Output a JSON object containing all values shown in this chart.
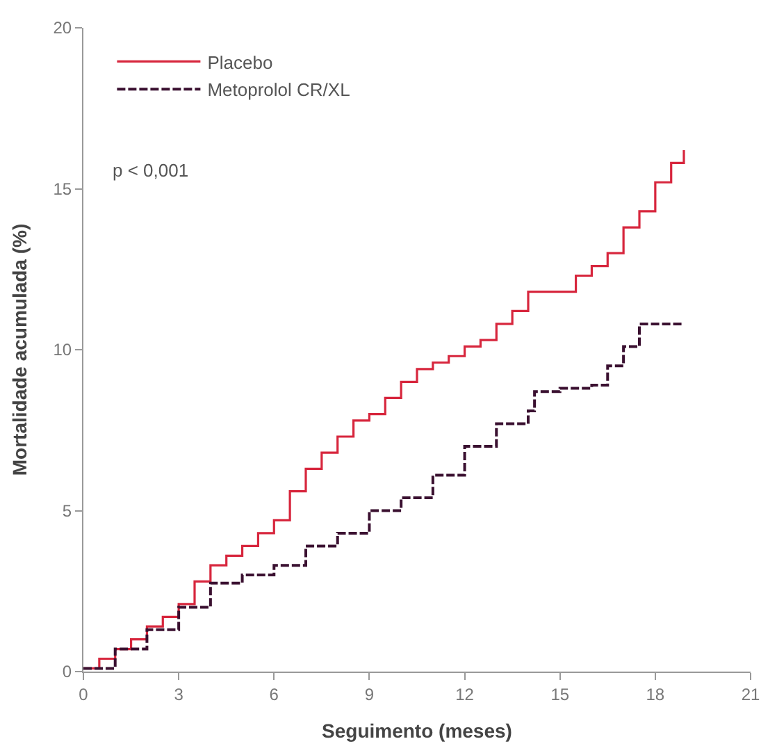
{
  "chart_data": {
    "type": "step",
    "xlabel": "Seguimento (meses)",
    "ylabel": "Mortalidade acumulada (%)",
    "xlim": [
      0,
      21
    ],
    "ylim": [
      0,
      20
    ],
    "xticks": [
      0,
      3,
      6,
      9,
      12,
      15,
      18,
      21
    ],
    "yticks": [
      0,
      5,
      10,
      15,
      20
    ],
    "legend": "top left",
    "annotations": [
      "p < 0,001"
    ],
    "series": [
      {
        "name": "Placebo",
        "color": "#d7263d",
        "line_style": "solid",
        "x": [
          0,
          0.5,
          1,
          1.5,
          2,
          2.5,
          3,
          3.5,
          4,
          4.5,
          5,
          5.5,
          6,
          6.5,
          7,
          7.5,
          8,
          8.5,
          9,
          9.5,
          10,
          10.5,
          11,
          11.5,
          12,
          12.5,
          13,
          13.5,
          14,
          14.5,
          15,
          15.5,
          16,
          16.5,
          17,
          17.5,
          18,
          18.5,
          18.9
        ],
        "values": [
          0.1,
          0.4,
          0.7,
          1.0,
          1.4,
          1.7,
          2.1,
          2.8,
          3.3,
          3.6,
          3.9,
          4.3,
          4.7,
          5.6,
          6.3,
          6.8,
          7.3,
          7.8,
          8.0,
          8.5,
          9.0,
          9.4,
          9.6,
          9.8,
          10.1,
          10.3,
          10.8,
          11.2,
          11.8,
          11.8,
          11.8,
          12.3,
          12.6,
          13.0,
          13.8,
          14.3,
          15.2,
          15.8,
          16.2
        ]
      },
      {
        "name": "Metoprolol CR/XL",
        "color": "#3a1030",
        "line_style": "dashed",
        "x": [
          0,
          1,
          2,
          3,
          4,
          5,
          6,
          7,
          8,
          9,
          10,
          11,
          12,
          13,
          14,
          14.2,
          15,
          16,
          16.5,
          17,
          17.5,
          18.9
        ],
        "values": [
          0.1,
          0.7,
          1.3,
          2.0,
          2.75,
          3.0,
          3.3,
          3.9,
          4.3,
          5.0,
          5.4,
          6.1,
          7.0,
          7.7,
          8.1,
          8.7,
          8.8,
          8.9,
          9.5,
          10.1,
          10.8,
          10.8
        ]
      }
    ]
  }
}
